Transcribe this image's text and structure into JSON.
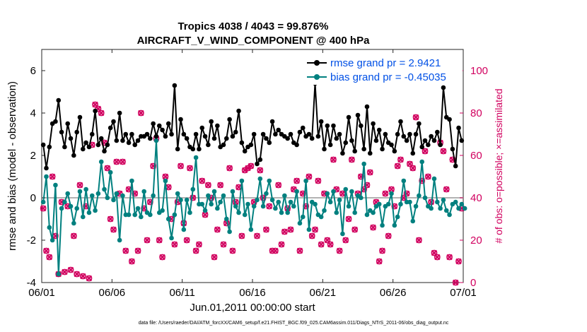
{
  "chart_data": {
    "type": "line",
    "title": "Tropics 4038 / 4043 = 99.876%",
    "subtitle": "AIRCRAFT_V_WIND_COMPONENT @ 400 hPa",
    "xlabel": "Jun.01,2011 00:00:00 start",
    "ylabel": "rmse and bias (model - observation)",
    "y2label": "# of obs: o=possible; ×=assimilated",
    "footnote": "data file: /Users/raeder/DAI/ATM_forcXX/CAM6_setup/f.e21.FHIST_BGC.f09_025.CAM6assim.011/Diags_NTrS_2011-06/obs_diag_output.nc",
    "xticks": [
      "06/01",
      "06/06",
      "06/11",
      "06/16",
      "06/21",
      "06/26",
      "07/01"
    ],
    "xlim": [
      0,
      30
    ],
    "ylim": [
      -4,
      7
    ],
    "yticks": [
      "-4",
      "-2",
      "0",
      "2",
      "4",
      "6"
    ],
    "y2lim": [
      0,
      110
    ],
    "y2ticks": [
      "0",
      "20",
      "40",
      "60",
      "80",
      "100"
    ],
    "zero_line": 0,
    "legend": [
      {
        "name": "rmse grand pr = 2.9421",
        "color": "#000000"
      },
      {
        "name": "bias grand pr = -0.45035",
        "color": "#00807f"
      }
    ],
    "series": [
      {
        "name": "rmse",
        "color": "#000000",
        "values": [
          2.5,
          1.4,
          2.4,
          3.5,
          3.6,
          4.6,
          3.1,
          2.4,
          3.5,
          2.8,
          2.0,
          3.1,
          3.8,
          2.3,
          2.6,
          2.4,
          3.0,
          4.1,
          2.5,
          2.8,
          2.2,
          2.5,
          3.3,
          3.6,
          2.7,
          4.0,
          2.7,
          3.0,
          2.6,
          3.0,
          2.5,
          2.7,
          2.9,
          2.9,
          3.0,
          2.8,
          3.5,
          2.9,
          3.4,
          3.2,
          2.9,
          3.5,
          3.0,
          5.3,
          2.3,
          3.7,
          3.0,
          2.8,
          2.4,
          2.3,
          3.0,
          2.3,
          3.3,
          2.9,
          2.5,
          3.6,
          2.8,
          3.4,
          2.4,
          2.5,
          2.8,
          3.7,
          2.9,
          3.1,
          4.1,
          2.6,
          2.2,
          2.4,
          2.5,
          3.0,
          1.6,
          1.8,
          3.0,
          2.8,
          2.6,
          3.6,
          3.0,
          3.2,
          3.0,
          2.9,
          2.8,
          3.0,
          2.6,
          2.5,
          3.1,
          3.3,
          2.9,
          3.0,
          2.8,
          5.4,
          2.9,
          3.6,
          2.3,
          3.4,
          2.5,
          3.4,
          2.8,
          3.0,
          2.1,
          2.6,
          3.8,
          2.7,
          2.2,
          3.9,
          3.4,
          2.3,
          4.3,
          2.1,
          3.5,
          2.7,
          3.2,
          2.3,
          3.0,
          2.6,
          2.5,
          2.2,
          3.0,
          3.6,
          2.9,
          2.7,
          3.0,
          2.1,
          3.0,
          3.5,
          2.4,
          2.7,
          2.5,
          2.9,
          2.7,
          3.1,
          2.5,
          5.2,
          3.8,
          3.7,
          2.3,
          1.5,
          3.3,
          2.7
        ]
      },
      {
        "name": "bias",
        "color": "#00807f",
        "values": [
          -0.2,
          1.0,
          -1.4,
          -2.0,
          0.6,
          -3.6,
          -0.5,
          -0.2,
          0.2,
          -0.4,
          -1.2,
          -0.5,
          0.3,
          -0.9,
          0.4,
          -0.7,
          0.1,
          -0.6,
          0.2,
          1.7,
          0.4,
          0.0,
          1.2,
          -0.1,
          0.2,
          -2.0,
          0.1,
          -0.8,
          -0.8,
          0.8,
          -0.8,
          -0.5,
          -0.9,
          0.3,
          -0.7,
          -0.8,
          0.1,
          2.7,
          -0.7,
          -0.6,
          0.8,
          -1.0,
          -1.9,
          -0.8,
          0.2,
          -0.1,
          -1.5,
          -0.1,
          -0.7,
          0.4,
          1.9,
          -0.3,
          -0.3,
          -0.6,
          0.1,
          -0.3,
          0.3,
          -0.5,
          -0.2,
          0.1,
          -1.0,
          -1.6,
          0.3,
          -0.4,
          -0.7,
          0.8,
          -0.8,
          -0.3,
          -1.5,
          -0.4,
          -0.1,
          0.9,
          -0.4,
          0.2,
          0.8,
          -0.1,
          -0.5,
          -0.2,
          -0.7,
          0.1,
          -0.7,
          -0.2,
          -0.4,
          0.3,
          -1.2,
          -0.9,
          0.8,
          -1.5,
          -0.2,
          -0.3,
          -0.8,
          -0.9,
          -0.6,
          0.2,
          -0.2,
          0.3,
          -0.7,
          -0.1,
          -1.7,
          0.4,
          -0.4,
          0.3,
          -0.7,
          0.1,
          0.0,
          1.6,
          -0.8,
          -0.6,
          -0.7,
          -0.4,
          -0.3,
          -1.3,
          -0.4,
          -0.3,
          0.2,
          -1.3,
          -0.9,
          -0.3,
          0.8,
          -0.2,
          -0.2,
          -1.1,
          -0.4,
          0.1,
          1.7,
          0.0,
          -0.4,
          -0.5,
          0.9,
          -0.2,
          -0.5,
          -0.1,
          -0.6,
          -0.8,
          -0.3,
          -0.2,
          -0.5,
          -0.3,
          -0.5
        ]
      },
      {
        "name": "obs possible / assimilated",
        "color": "#d1005f",
        "axis": "right",
        "values": [
          35,
          15,
          12,
          50,
          22,
          4,
          38,
          5,
          36,
          6,
          22,
          4,
          46,
          3,
          36,
          2,
          65,
          84,
          82,
          80,
          66,
          54,
          30,
          25,
          57,
          42,
          57,
          15,
          44,
          10,
          42,
          15,
          80,
          35,
          20,
          38,
          55,
          68,
          20,
          12,
          50,
          45,
          30,
          18,
          38,
          55,
          28,
          20,
          54,
          40,
          15,
          18,
          48,
          32,
          46,
          40,
          12,
          25,
          46,
          18,
          28,
          54,
          15,
          38,
          45,
          22,
          53,
          54,
          55,
          38,
          22,
          53,
          40,
          25,
          36,
          15,
          15,
          46,
          18,
          24,
          35,
          25,
          44,
          48,
          15,
          42,
          36,
          50,
          22,
          25,
          48,
          18,
          42,
          20,
          18,
          58,
          44,
          15,
          42,
          20,
          30,
          58,
          25,
          42,
          50,
          44,
          46,
          52,
          26,
          38,
          10,
          15,
          42,
          22,
          44,
          36,
          55,
          58,
          40,
          42,
          56,
          54,
          78,
          20,
          48,
          62,
          50,
          38,
          14,
          12,
          66,
          62,
          44,
          12,
          58,
          0,
          10,
          35
        ]
      }
    ]
  }
}
